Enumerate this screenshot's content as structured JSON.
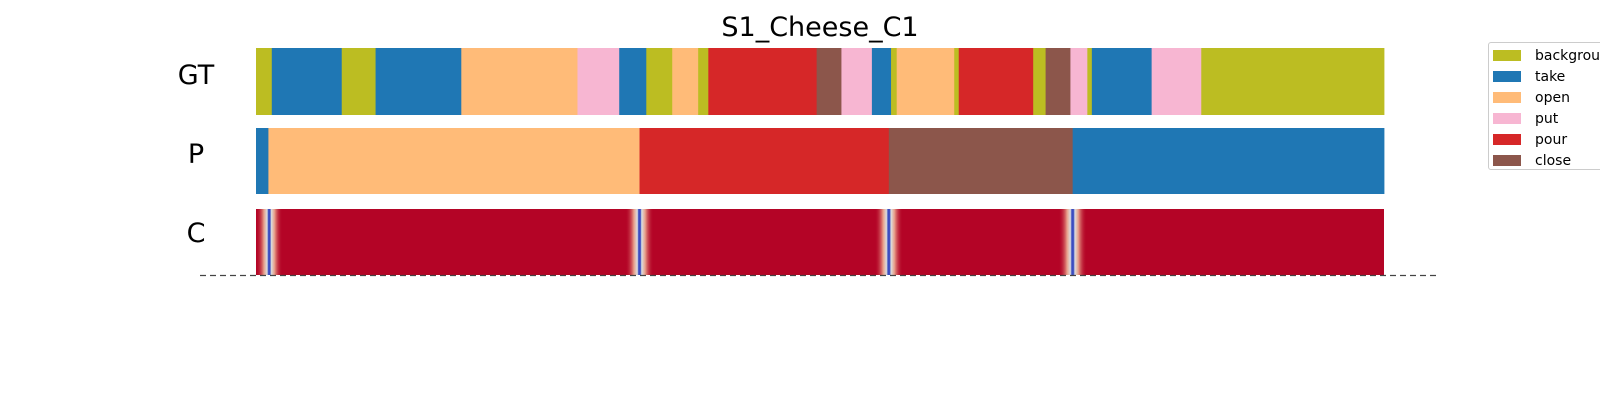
{
  "chart_data": {
    "type": "heatmap",
    "title": "S1_Cheese_C1",
    "rows": [
      "GT",
      "P",
      "C"
    ],
    "x_range": [
      0,
      1
    ],
    "colors": {
      "background": "#bcbd22",
      "take": "#1f77b4",
      "open": "#ffbb78",
      "put": "#f7b6d2",
      "pour": "#d62728",
      "close": "#8c564b"
    },
    "legend": {
      "placement": "right (clipped at figure edge)",
      "items": [
        {
          "label": "backgrour",
          "key": "background"
        },
        {
          "label": "take",
          "key": "take"
        },
        {
          "label": "open",
          "key": "open"
        },
        {
          "label": "put",
          "key": "put"
        },
        {
          "label": "pour",
          "key": "pour"
        },
        {
          "label": "close",
          "key": "close"
        }
      ]
    },
    "gt_segments": [
      {
        "start": 0.0,
        "end": 0.014,
        "label": "background"
      },
      {
        "start": 0.014,
        "end": 0.076,
        "label": "take"
      },
      {
        "start": 0.076,
        "end": 0.106,
        "label": "background"
      },
      {
        "start": 0.106,
        "end": 0.182,
        "label": "take"
      },
      {
        "start": 0.182,
        "end": 0.285,
        "label": "open"
      },
      {
        "start": 0.285,
        "end": 0.322,
        "label": "put"
      },
      {
        "start": 0.322,
        "end": 0.346,
        "label": "take"
      },
      {
        "start": 0.346,
        "end": 0.369,
        "label": "background"
      },
      {
        "start": 0.369,
        "end": 0.392,
        "label": "open"
      },
      {
        "start": 0.392,
        "end": 0.401,
        "label": "background"
      },
      {
        "start": 0.401,
        "end": 0.497,
        "label": "pour"
      },
      {
        "start": 0.497,
        "end": 0.519,
        "label": "close"
      },
      {
        "start": 0.519,
        "end": 0.546,
        "label": "put"
      },
      {
        "start": 0.546,
        "end": 0.563,
        "label": "take"
      },
      {
        "start": 0.563,
        "end": 0.568,
        "label": "background"
      },
      {
        "start": 0.568,
        "end": 0.619,
        "label": "open"
      },
      {
        "start": 0.619,
        "end": 0.623,
        "label": "background"
      },
      {
        "start": 0.623,
        "end": 0.689,
        "label": "pour"
      },
      {
        "start": 0.689,
        "end": 0.7,
        "label": "background"
      },
      {
        "start": 0.7,
        "end": 0.722,
        "label": "close"
      },
      {
        "start": 0.722,
        "end": 0.737,
        "label": "put"
      },
      {
        "start": 0.737,
        "end": 0.741,
        "label": "background"
      },
      {
        "start": 0.741,
        "end": 0.794,
        "label": "take"
      },
      {
        "start": 0.794,
        "end": 0.838,
        "label": "put"
      },
      {
        "start": 0.838,
        "end": 1.0,
        "label": "background"
      }
    ],
    "p_segments": [
      {
        "start": 0.0,
        "end": 0.011,
        "label": "take"
      },
      {
        "start": 0.011,
        "end": 0.34,
        "label": "open"
      },
      {
        "start": 0.34,
        "end": 0.561,
        "label": "pour"
      },
      {
        "start": 0.561,
        "end": 0.724,
        "label": "close"
      },
      {
        "start": 0.724,
        "end": 1.0,
        "label": "take"
      }
    ],
    "confidence": {
      "base_color": "#b40426",
      "dip_colors": [
        "#3b4cc0",
        "#dddddd"
      ],
      "dips": [
        0.011,
        0.34,
        0.561,
        0.724
      ]
    },
    "baseline": "dashed"
  }
}
